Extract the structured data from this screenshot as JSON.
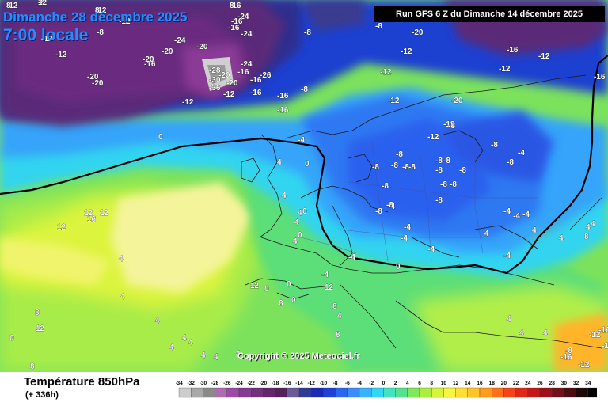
{
  "header": {
    "date_label": "Dimanche 28 décembre 2025",
    "time_label": "7:00 locale",
    "run_label": "Run GFS 6 Z du Dimanche 14 décembre 2025"
  },
  "copyright": "Copyright © 2025 Meteociel.fr",
  "footer": {
    "variable_label": "Température 850hPa",
    "lead_label": "(+ 336h)"
  },
  "legend": {
    "ticks": [
      "-34",
      "-32",
      "-30",
      "-28",
      "-26",
      "-24",
      "-22",
      "-20",
      "-18",
      "-16",
      "-14",
      "-12",
      "-10",
      "-8",
      "-6",
      "-4",
      "-2",
      "0",
      "2",
      "4",
      "6",
      "8",
      "10",
      "12",
      "14",
      "16",
      "18",
      "20",
      "22",
      "24",
      "26",
      "28",
      "30",
      "32",
      "34"
    ],
    "colors": [
      "#cccccc",
      "#a8a8a8",
      "#8a8a8a",
      "#b06ab4",
      "#9c4aa6",
      "#873a92",
      "#74307f",
      "#63266d",
      "#55205c",
      "#6a5a9c",
      "#2e3c98",
      "#1a2ab4",
      "#1f3fd6",
      "#2a66f0",
      "#3a8cf8",
      "#36b4fb",
      "#30d8f6",
      "#40e4c0",
      "#54e28e",
      "#7ee85a",
      "#aaee40",
      "#d8f43a",
      "#f6f640",
      "#ffe032",
      "#ffc428",
      "#ff9c1e",
      "#ff7018",
      "#f64418",
      "#e22618",
      "#c41818",
      "#a0101a",
      "#741018",
      "#4c0c10",
      "#200808",
      "#000000"
    ]
  },
  "map": {
    "labels": [
      "-8",
      "-16",
      "-12",
      "-12",
      "-24",
      "-12",
      "-16",
      "-24",
      "-12",
      "-12",
      "-8",
      "-16",
      "-20",
      "-20",
      "-16",
      "-24",
      "-20",
      "-20",
      "-20",
      "-16",
      "-24",
      "-28",
      "-20",
      "-20",
      "-12",
      "-30",
      "-26",
      "-16",
      "-36",
      "-12",
      "-16",
      "-8",
      "-16",
      "-8",
      "-12",
      "-12",
      "-20",
      "-20",
      "-12",
      "-16",
      "-16",
      "-12",
      "-12",
      "-12",
      "-8",
      "-16",
      "-12",
      "-12",
      "-8",
      "0",
      "-4",
      "-8",
      "-8",
      "-4",
      "-4",
      "-4",
      "4",
      "0",
      "-8",
      "-8",
      "-8",
      "-8",
      "-8",
      "-8",
      "-8",
      "-8",
      "-8",
      "-8",
      "-8",
      "-8",
      "-8",
      "-8",
      "-8",
      "-4",
      "-4",
      "-4",
      "-4",
      "4",
      "4",
      "4",
      "4",
      "4",
      "0",
      "0",
      "4",
      "4",
      "-4",
      "-4",
      "-4",
      "0",
      "-4",
      "4",
      "4",
      "8",
      "4",
      "4",
      "8",
      "12",
      "8",
      "0",
      "0",
      "0",
      "0",
      "8",
      "12",
      "8",
      "4",
      "4",
      "4",
      "4",
      "4",
      "4",
      "4",
      "4",
      "8",
      "12",
      "12",
      "12",
      "12",
      "4",
      "4",
      "4",
      "-8",
      "-12",
      "-12",
      "-12",
      "-16",
      "-16",
      "16",
      "12",
      "8",
      "8",
      "8"
    ]
  }
}
